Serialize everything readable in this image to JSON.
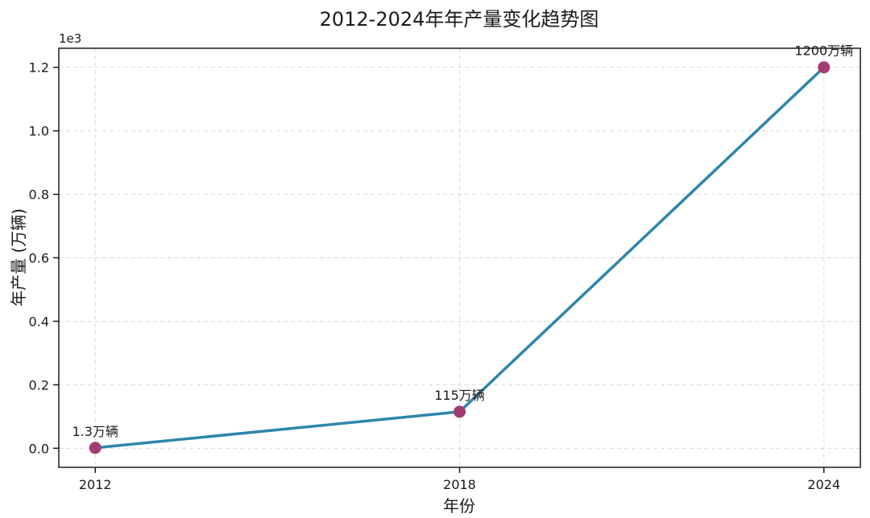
{
  "figure": {
    "background": "#ffffff"
  },
  "chart_data": {
    "type": "line",
    "title": "2012-2024年年产量变化趋势图",
    "xlabel": "年份",
    "ylabel": "年产量 (万辆)",
    "y_axis_offset_label": "1e3",
    "x": [
      2012,
      2018,
      2024
    ],
    "x_tick_labels": [
      "2012",
      "2018",
      "2024"
    ],
    "series": [
      {
        "name": "年产量",
        "values": [
          1.3,
          115,
          1200
        ],
        "point_labels": [
          "1.3万辆",
          "115万辆",
          "1200万辆"
        ],
        "line_color": "#2E86AB",
        "marker_color": "#A23B72"
      }
    ],
    "y_ticks": [
      0,
      200,
      400,
      600,
      800,
      1000,
      1200
    ],
    "y_tick_labels": [
      "0.0",
      "0.2",
      "0.4",
      "0.6",
      "0.8",
      "1.0",
      "1.2"
    ],
    "xlim": [
      2011.4,
      2024.6
    ],
    "ylim": [
      -60,
      1260
    ],
    "grid": true,
    "grid_color": "#d9d9d9",
    "grid_style": "dashed",
    "legend": "none",
    "axis_color": "#1a1a1a"
  }
}
